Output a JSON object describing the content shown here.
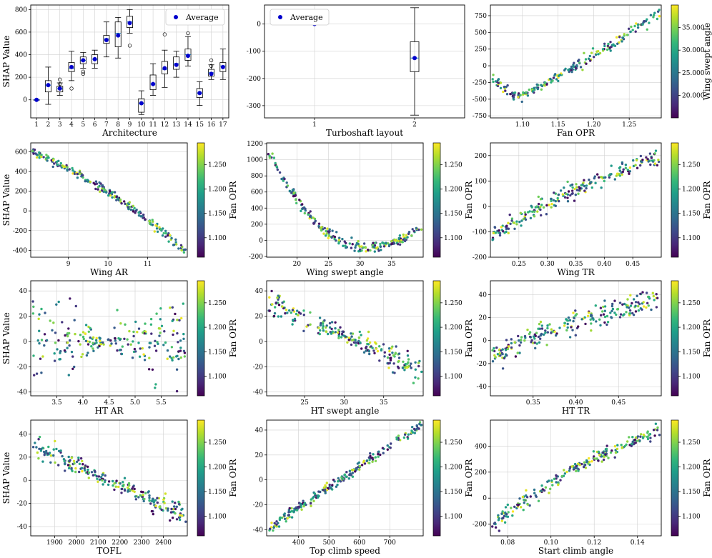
{
  "figure_type": "SHAP dependence plot grid",
  "palette": {
    "viridis": [
      "#440154",
      "#482878",
      "#3e4989",
      "#31688e",
      "#26828e",
      "#1f9e89",
      "#35b779",
      "#6ece58",
      "#b5de2b",
      "#fde725"
    ],
    "average_marker": "#0000cc",
    "grid": "#d0d0d0",
    "axis": "#000000"
  },
  "chart_data": [
    {
      "id": "architecture",
      "type": "box",
      "xlabel": "Architecture",
      "ylabel": "SHAP Value",
      "categories": [
        "1",
        "2",
        "3",
        "4",
        "5",
        "6",
        "7",
        "8",
        "9",
        "10",
        "11",
        "12",
        "13",
        "14",
        "15",
        "16",
        "17"
      ],
      "boxes": [
        {
          "min": 0,
          "q1": 0,
          "median": 0,
          "q3": 0,
          "max": 0,
          "outliers": []
        },
        {
          "min": -40,
          "q1": 70,
          "median": 130,
          "q3": 170,
          "max": 290,
          "outliers": []
        },
        {
          "min": 40,
          "q1": 70,
          "median": 100,
          "q3": 120,
          "max": 150,
          "outliers": [
            180,
            140
          ]
        },
        {
          "min": 170,
          "q1": 250,
          "median": 280,
          "q3": 330,
          "max": 430,
          "outliers": [
            100
          ]
        },
        {
          "min": 280,
          "q1": 320,
          "median": 350,
          "q3": 380,
          "max": 420,
          "outliers": [
            250,
            230
          ]
        },
        {
          "min": 280,
          "q1": 320,
          "median": 360,
          "q3": 400,
          "max": 440,
          "outliers": []
        },
        {
          "min": 380,
          "q1": 500,
          "median": 540,
          "q3": 570,
          "max": 690,
          "outliers": []
        },
        {
          "min": 370,
          "q1": 470,
          "median": 590,
          "q3": 690,
          "max": 730,
          "outliers": []
        },
        {
          "min": 590,
          "q1": 640,
          "median": 690,
          "q3": 740,
          "max": 800,
          "outliers": [
            480
          ]
        },
        {
          "min": -130,
          "q1": -110,
          "median": -30,
          "q3": 10,
          "max": 80,
          "outliers": []
        },
        {
          "min": 40,
          "q1": 90,
          "median": 140,
          "q3": 220,
          "max": 320,
          "outliers": []
        },
        {
          "min": 110,
          "q1": 230,
          "median": 270,
          "q3": 340,
          "max": 440,
          "outliers": [
            580
          ]
        },
        {
          "min": 200,
          "q1": 270,
          "median": 320,
          "q3": 380,
          "max": 430,
          "outliers": []
        },
        {
          "min": 300,
          "q1": 350,
          "median": 400,
          "q3": 450,
          "max": 560,
          "outliers": [
            590
          ]
        },
        {
          "min": -50,
          "q1": 20,
          "median": 60,
          "q3": 100,
          "max": 160,
          "outliers": []
        },
        {
          "min": 180,
          "q1": 210,
          "median": 240,
          "q3": 270,
          "max": 310,
          "outliers": [
            350,
            300
          ]
        },
        {
          "min": 180,
          "q1": 250,
          "median": 300,
          "q3": 330,
          "max": 450,
          "outliers": []
        }
      ],
      "averages": [
        0,
        130,
        100,
        290,
        350,
        360,
        530,
        570,
        680,
        -30,
        140,
        280,
        310,
        390,
        60,
        230,
        290
      ],
      "ylim": [
        -160,
        840
      ],
      "yticks": [
        0,
        200,
        400,
        600,
        800
      ],
      "legend": {
        "label": "Average",
        "position": "upper right"
      },
      "colorbar": null
    },
    {
      "id": "turboshaft",
      "type": "box",
      "xlabel": "Turboshaft layout",
      "ylabel": "",
      "categories": [
        "1",
        "2"
      ],
      "boxes": [
        {
          "min": 0,
          "q1": 0,
          "median": 0,
          "q3": 0,
          "max": 0,
          "outliers": []
        },
        {
          "min": -335,
          "q1": -175,
          "median": -125,
          "q3": -65,
          "max": 60,
          "outliers": []
        }
      ],
      "averages": [
        0,
        -125
      ],
      "ylim": [
        -345,
        70
      ],
      "yticks": [
        -300,
        -200,
        -100,
        0
      ],
      "legend": {
        "label": "Average",
        "position": "upper left"
      },
      "colorbar": null
    },
    {
      "id": "fan_opr",
      "type": "scatter",
      "xlabel": "Fan OPR",
      "ylabel": "",
      "trend": {
        "kind": "vee",
        "vx": 1.09,
        "vy": -470,
        "left": -160,
        "right": 790
      },
      "noise": 70,
      "count": 200,
      "xlim": [
        1.055,
        1.295
      ],
      "xticks": [
        1.1,
        1.15,
        1.2,
        1.25
      ],
      "xtick_labels": [
        "1.10",
        "1.15",
        "1.20",
        "1.25"
      ],
      "ylim": [
        -780,
        910
      ],
      "yticks": [
        -750,
        -500,
        -250,
        0,
        250,
        500,
        750
      ],
      "colorbar": {
        "label": "Wing swept angle",
        "vmin": 15000,
        "vmax": 40000,
        "ticks": [
          20000,
          25000,
          30000,
          35000
        ],
        "tick_labels": [
          "20.000",
          "25.000",
          "30.000",
          "35.000"
        ]
      },
      "color_source": "seed"
    },
    {
      "id": "wing_ar",
      "type": "scatter",
      "ylabel": "SHAP Value",
      "xlabel": "Wing AR",
      "trend": {
        "kind": "curve",
        "x0": 8.1,
        "y0": 600,
        "x1": 11.9,
        "y1": -390,
        "bend": 0.35
      },
      "noise": 35,
      "count": 220,
      "xlim": [
        8.05,
        12.0
      ],
      "xticks": [
        9,
        10,
        11
      ],
      "xtick_labels": [
        "9",
        "10",
        "11"
      ],
      "ylim": [
        -470,
        690
      ],
      "yticks": [
        -400,
        -200,
        0,
        200,
        400,
        600
      ],
      "colorbar": {
        "label": "Fan OPR",
        "vmin": 1.06,
        "vmax": 1.295,
        "ticks": [
          1.1,
          1.15,
          1.2,
          1.25
        ],
        "tick_labels": [
          "1.100",
          "1.150",
          "1.200",
          "1.250"
        ]
      },
      "color_source": "seed"
    },
    {
      "id": "wing_swept",
      "type": "scatter",
      "ylabel": "",
      "xlabel": "Wing swept angle",
      "trend": {
        "kind": "parabola",
        "vx": 31,
        "vy": -90,
        "left": 1080,
        "right": 160,
        "xmin": 15.7,
        "xmax": 39.5
      },
      "noise": 55,
      "count": 220,
      "xlim": [
        15.2,
        40.0
      ],
      "xticks": [
        20,
        25,
        30,
        35
      ],
      "xtick_labels": [
        "20",
        "25",
        "30",
        "35"
      ],
      "ylim": [
        -210,
        1210
      ],
      "yticks": [
        -200,
        0,
        200,
        400,
        600,
        800,
        1000,
        1200
      ],
      "colorbar": {
        "label": "Fan OPR",
        "vmin": 1.06,
        "vmax": 1.295,
        "ticks": [
          1.1,
          1.15,
          1.2,
          1.25
        ],
        "tick_labels": [
          "1.100",
          "1.150",
          "1.200",
          "1.250"
        ]
      },
      "color_source": "seed"
    },
    {
      "id": "wing_tr",
      "type": "scatter",
      "ylabel": "",
      "xlabel": "Wing TR",
      "trend": {
        "kind": "curve",
        "x0": 0.205,
        "y0": -110,
        "x1": 0.495,
        "y1": 190,
        "bend": -0.35
      },
      "noise": 28,
      "count": 220,
      "xlim": [
        0.2,
        0.5
      ],
      "xticks": [
        0.25,
        0.3,
        0.35,
        0.4,
        0.45
      ],
      "xtick_labels": [
        "0.25",
        "0.30",
        "0.35",
        "0.40",
        "0.45"
      ],
      "ylim": [
        -200,
        250
      ],
      "yticks": [
        -200,
        -100,
        0,
        100,
        200
      ],
      "colorbar": {
        "label": "Fan OPR",
        "vmin": 1.06,
        "vmax": 1.295,
        "ticks": [
          1.1,
          1.15,
          1.2,
          1.25
        ],
        "tick_labels": [
          "1.100",
          "1.150",
          "1.200",
          "1.250"
        ]
      },
      "color_source": "seed"
    },
    {
      "id": "ht_ar",
      "type": "scatter",
      "ylabel": "SHAP Value",
      "xlabel": "HT AR",
      "trend": {
        "kind": "spread",
        "cx": 4.45,
        "y0": 0,
        "spread": 30
      },
      "noise": 4,
      "count": 220,
      "xlim": [
        3.0,
        6.0
      ],
      "xticks": [
        3.5,
        4.0,
        4.5,
        5.0,
        5.5
      ],
      "xtick_labels": [
        "3.5",
        "4.0",
        "4.5",
        "5.0",
        "5.5"
      ],
      "ylim": [
        -43,
        48
      ],
      "yticks": [
        -40,
        -20,
        0,
        20,
        40
      ],
      "colorbar": {
        "label": "Fan OPR",
        "vmin": 1.06,
        "vmax": 1.295,
        "ticks": [
          1.1,
          1.15,
          1.2,
          1.25
        ],
        "tick_labels": [
          "1.100",
          "1.150",
          "1.200",
          "1.250"
        ]
      },
      "color_source": "seed"
    },
    {
      "id": "ht_swept",
      "type": "scatter",
      "ylabel": "",
      "xlabel": "HT swept angle",
      "trend": {
        "kind": "linear",
        "x0": 20.8,
        "y0": 30,
        "x1": 39.5,
        "y1": -22
      },
      "noise": 8,
      "count": 220,
      "xlim": [
        20.2,
        40.0
      ],
      "xticks": [
        25,
        30,
        35
      ],
      "xtick_labels": [
        "25",
        "30",
        "35"
      ],
      "ylim": [
        -43,
        48
      ],
      "yticks": [
        -40,
        -20,
        0,
        20,
        40
      ],
      "colorbar": {
        "label": "Fan OPR",
        "vmin": 1.06,
        "vmax": 1.295,
        "ticks": [
          1.1,
          1.15,
          1.2,
          1.25
        ],
        "tick_labels": [
          "1.100",
          "1.150",
          "1.200",
          "1.250"
        ]
      },
      "color_source": "seed"
    },
    {
      "id": "ht_tr",
      "type": "scatter",
      "ylabel": "",
      "xlabel": "HT TR",
      "trend": {
        "kind": "curve",
        "x0": 0.305,
        "y0": -12,
        "x1": 0.495,
        "y1": 35,
        "bend": -0.4
      },
      "noise": 9,
      "count": 220,
      "xlim": [
        0.3,
        0.5
      ],
      "xticks": [
        0.35,
        0.4,
        0.45
      ],
      "xtick_labels": [
        "0.35",
        "0.40",
        "0.45"
      ],
      "ylim": [
        -48,
        52
      ],
      "yticks": [
        -40,
        -20,
        0,
        20,
        40
      ],
      "colorbar": {
        "label": "Fan OPR",
        "vmin": 1.06,
        "vmax": 1.295,
        "ticks": [
          1.1,
          1.15,
          1.2,
          1.25
        ],
        "tick_labels": [
          "1.100",
          "1.150",
          "1.200",
          "1.250"
        ]
      },
      "color_source": "seed"
    },
    {
      "id": "tofl",
      "type": "scatter",
      "ylabel": "SHAP Value",
      "xlabel": "TOFL",
      "trend": {
        "kind": "curve",
        "x0": 1810,
        "y0": 30,
        "x1": 2490,
        "y1": -30,
        "bend": 0.0
      },
      "noise": 9,
      "count": 220,
      "xlim": [
        1790,
        2510
      ],
      "xticks": [
        1900,
        2000,
        2100,
        2200,
        2300,
        2400
      ],
      "xtick_labels": [
        "1900",
        "2000",
        "2100",
        "2200",
        "2300",
        "2400"
      ],
      "ylim": [
        -48,
        52
      ],
      "yticks": [
        -40,
        -20,
        0,
        20,
        40
      ],
      "colorbar": {
        "label": "Fan OPR",
        "vmin": 1.06,
        "vmax": 1.295,
        "ticks": [
          1.1,
          1.15,
          1.2,
          1.25
        ],
        "tick_labels": [
          "1.100",
          "1.150",
          "1.200",
          "1.250"
        ]
      },
      "color_source": "seed"
    },
    {
      "id": "top_climb",
      "type": "scatter",
      "ylabel": "",
      "xlabel": "Top climb speed",
      "trend": {
        "kind": "linear",
        "x0": 310,
        "y0": -38,
        "x1": 795,
        "y1": 43
      },
      "noise": 3,
      "count": 220,
      "xlim": [
        295,
        810
      ],
      "xticks": [
        400,
        500,
        600,
        700
      ],
      "xtick_labels": [
        "400",
        "500",
        "600",
        "700"
      ],
      "ylim": [
        -45,
        48
      ],
      "yticks": [
        -40,
        -20,
        0,
        20,
        40
      ],
      "colorbar": {
        "label": "Fan OPR",
        "vmin": 1.06,
        "vmax": 1.295,
        "ticks": [
          1.1,
          1.15,
          1.2,
          1.25
        ],
        "tick_labels": [
          "1.100",
          "1.150",
          "1.200",
          "1.250"
        ]
      },
      "color_source": "seed"
    },
    {
      "id": "start_climb",
      "type": "scatter",
      "ylabel": "",
      "xlabel": "Start climb angle",
      "trend": {
        "kind": "curve",
        "x0": 0.074,
        "y0": -200,
        "x1": 0.149,
        "y1": 500,
        "bend": -0.45
      },
      "noise": 45,
      "count": 220,
      "xlim": [
        0.072,
        0.151
      ],
      "xticks": [
        0.08,
        0.1,
        0.12,
        0.14
      ],
      "xtick_labels": [
        "0.08",
        "0.10",
        "0.12",
        "0.14"
      ],
      "ylim": [
        -290,
        600
      ],
      "yticks": [
        -200,
        0,
        200,
        400
      ],
      "colorbar": {
        "label": "Fan OPR",
        "vmin": 1.06,
        "vmax": 1.295,
        "ticks": [
          1.1,
          1.15,
          1.2,
          1.25
        ],
        "tick_labels": [
          "1.100",
          "1.150",
          "1.200",
          "1.250"
        ]
      },
      "color_source": "seed"
    }
  ]
}
